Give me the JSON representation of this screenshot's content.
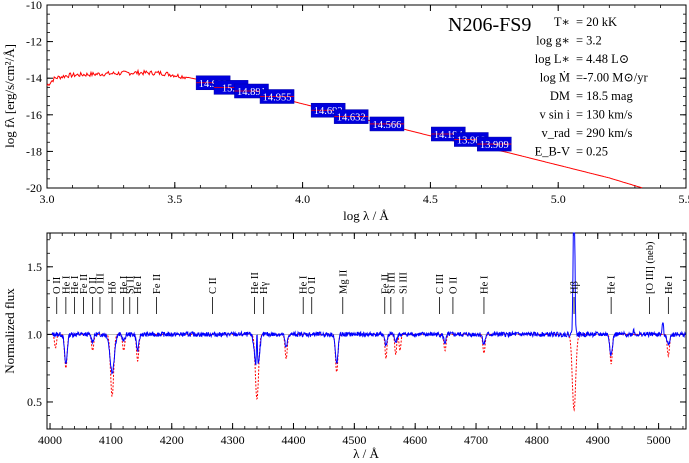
{
  "chart_data": [
    {
      "type": "line",
      "name": "sed-panel",
      "title": "N206-FS9",
      "xlabel": "log λ / Å",
      "ylabel": "log fλ [erg/s/cm²/Å]",
      "xlim": [
        3.0,
        5.5
      ],
      "ylim": [
        -20,
        -10
      ],
      "xticks": [
        3.0,
        3.5,
        4.0,
        4.5,
        5.0,
        5.5
      ],
      "yticks": [
        -10,
        -12,
        -14,
        -16,
        -18,
        -20
      ],
      "xtick_labels": [
        "3.0",
        "3.5",
        "4.0",
        "4.5",
        "5.0",
        "5.5"
      ],
      "ytick_labels": [
        "-10",
        "-12",
        "-14",
        "-16",
        "-18",
        "-20"
      ],
      "params": [
        {
          "left": "T∗",
          "right": "= 20 kK"
        },
        {
          "left": "log g∗",
          "right": "= 3.2"
        },
        {
          "left": "log L∗",
          "right": "= 4.48 L⊙"
        },
        {
          "left": "log Ṁ",
          "right": "=-7.00 M⊙/yr"
        },
        {
          "left": "DM",
          "right": "= 18.5 mag"
        },
        {
          "left": "v sin i",
          "right": "= 130 km/s"
        },
        {
          "left": "v_rad",
          "right": "= 290 km/s"
        },
        {
          "left": "E_B-V",
          "right": "= 0.25"
        }
      ],
      "model_sed": {
        "x": [
          3.0,
          3.03,
          3.08,
          3.15,
          3.25,
          3.35,
          3.45,
          3.55,
          3.6,
          3.7,
          3.8,
          3.9,
          4.0,
          4.1,
          4.2,
          4.3,
          4.4,
          4.5,
          4.6,
          4.7,
          4.8,
          4.9,
          5.0,
          5.1,
          5.2,
          5.33
        ],
        "y": [
          -14.4,
          -14.0,
          -13.85,
          -13.8,
          -13.75,
          -13.7,
          -13.72,
          -13.95,
          -14.1,
          -14.4,
          -14.7,
          -15.05,
          -15.4,
          -15.75,
          -16.1,
          -16.45,
          -16.8,
          -17.15,
          -17.45,
          -17.75,
          -18.05,
          -18.4,
          -18.75,
          -19.1,
          -19.45,
          -20.0
        ]
      },
      "photometry": [
        {
          "x": 3.65,
          "y": -14.25,
          "label": "14.922"
        },
        {
          "x": 3.72,
          "y": -14.5,
          "label": "15.0"
        },
        {
          "x": 3.8,
          "y": -14.7,
          "label": "14.891"
        },
        {
          "x": 3.9,
          "y": -15.0,
          "label": "14.955"
        },
        {
          "x": 4.1,
          "y": -15.75,
          "label": "14.692"
        },
        {
          "x": 4.19,
          "y": -16.1,
          "label": "14.632"
        },
        {
          "x": 4.33,
          "y": -16.5,
          "label": "14.566"
        },
        {
          "x": 4.57,
          "y": -17.05,
          "label": "14.194"
        },
        {
          "x": 4.66,
          "y": -17.35,
          "label": "13.909"
        },
        {
          "x": 4.75,
          "y": -17.6,
          "label": "13.909"
        }
      ],
      "colors": {
        "model": "#ff0000",
        "photometry_box": "#0000dd"
      }
    },
    {
      "type": "line",
      "name": "spectrum-panel",
      "xlabel": "λ / Å",
      "ylabel": "Normalized flux",
      "xlim": [
        3995,
        5045
      ],
      "ylim": [
        0.3,
        1.75
      ],
      "xticks": [
        4000,
        4100,
        4200,
        4300,
        4400,
        4500,
        4600,
        4700,
        4800,
        4900,
        5000
      ],
      "yticks": [
        0.5,
        1.0,
        1.5
      ],
      "xtick_labels": [
        "4000",
        "4100",
        "4200",
        "4300",
        "4400",
        "4500",
        "4600",
        "4700",
        "4800",
        "4900",
        "5000"
      ],
      "ytick_labels": [
        "0.5",
        "1.0",
        "1.5"
      ],
      "observed_lines": [
        {
          "c": 4026,
          "d": 0.22,
          "w": 2.2
        },
        {
          "c": 4070,
          "d": 0.05,
          "w": 2.0
        },
        {
          "c": 4102,
          "d": 0.28,
          "w": 3.5
        },
        {
          "c": 4121,
          "d": 0.05,
          "w": 2.0
        },
        {
          "c": 4144,
          "d": 0.12,
          "w": 2.0
        },
        {
          "c": 4340,
          "d": 0.28,
          "w": 3.5
        },
        {
          "c": 4388,
          "d": 0.1,
          "w": 2.0
        },
        {
          "c": 4471,
          "d": 0.22,
          "w": 2.2
        },
        {
          "c": 4552,
          "d": 0.08,
          "w": 1.8
        },
        {
          "c": 4568,
          "d": 0.06,
          "w": 1.8
        },
        {
          "c": 4649,
          "d": 0.06,
          "w": 2.0
        },
        {
          "c": 4713,
          "d": 0.07,
          "w": 2.0
        },
        {
          "c": 4922,
          "d": 0.15,
          "w": 2.2
        },
        {
          "c": 5016,
          "d": 0.08,
          "w": 2.0
        }
      ],
      "model_lines": [
        {
          "c": 4009,
          "d": 0.1,
          "w": 1.6
        },
        {
          "c": 4026,
          "d": 0.25,
          "w": 2.0
        },
        {
          "c": 4070,
          "d": 0.12,
          "w": 1.8
        },
        {
          "c": 4102,
          "d": 0.46,
          "w": 2.6
        },
        {
          "c": 4121,
          "d": 0.12,
          "w": 1.8
        },
        {
          "c": 4144,
          "d": 0.2,
          "w": 1.8
        },
        {
          "c": 4340,
          "d": 0.48,
          "w": 2.6
        },
        {
          "c": 4388,
          "d": 0.18,
          "w": 1.8
        },
        {
          "c": 4471,
          "d": 0.28,
          "w": 2.0
        },
        {
          "c": 4552,
          "d": 0.18,
          "w": 1.5
        },
        {
          "c": 4568,
          "d": 0.15,
          "w": 1.5
        },
        {
          "c": 4575,
          "d": 0.12,
          "w": 1.5
        },
        {
          "c": 4649,
          "d": 0.12,
          "w": 1.8
        },
        {
          "c": 4713,
          "d": 0.14,
          "w": 1.8
        },
        {
          "c": 4861,
          "d": 0.56,
          "w": 2.8
        },
        {
          "c": 4922,
          "d": 0.22,
          "w": 1.8
        },
        {
          "c": 5016,
          "d": 0.16,
          "w": 1.8
        }
      ],
      "emission_lines": [
        {
          "c": 4340,
          "h": 0.3,
          "w": 0.8
        },
        {
          "c": 4861,
          "h": 1.25,
          "w": 1.3
        },
        {
          "c": 4959,
          "h": 0.04,
          "w": 0.9
        },
        {
          "c": 5007,
          "h": 0.1,
          "w": 0.9
        }
      ],
      "line_ids": [
        {
          "label": "O II",
          "x": 4011
        },
        {
          "label": "He I",
          "x": 4026
        },
        {
          "label": "He I",
          "x": 4040
        },
        {
          "label": "Fe II",
          "x": 4055
        },
        {
          "label": "O II",
          "x": 4070
        },
        {
          "label": "O III",
          "x": 4082
        },
        {
          "label": "Hδ",
          "x": 4102
        },
        {
          "label": "He I",
          "x": 4121
        },
        {
          "label": "Si II",
          "x": 4131
        },
        {
          "label": "He I",
          "x": 4144
        },
        {
          "label": "Fe II",
          "x": 4175
        },
        {
          "label": "C II",
          "x": 4267
        },
        {
          "label": "He II",
          "x": 4336
        },
        {
          "label": "Hγ",
          "x": 4351
        },
        {
          "label": "He I",
          "x": 4416
        },
        {
          "label": "O II",
          "x": 4430
        },
        {
          "label": "Mg II",
          "x": 4481
        },
        {
          "label": "Fe II",
          "x": 4550
        },
        {
          "label": "Si III",
          "x": 4560
        },
        {
          "label": "Si III",
          "x": 4580
        },
        {
          "label": "C III",
          "x": 4640
        },
        {
          "label": "O II",
          "x": 4662
        },
        {
          "label": "He I",
          "x": 4713
        },
        {
          "label": "Hβ",
          "x": 4861
        },
        {
          "label": "He I",
          "x": 4922
        },
        {
          "label": "[O III] (neb)",
          "x": 4985
        },
        {
          "label": "He I",
          "x": 5016
        }
      ],
      "colors": {
        "observed": "#0000ff",
        "model": "#ff0000"
      }
    }
  ]
}
